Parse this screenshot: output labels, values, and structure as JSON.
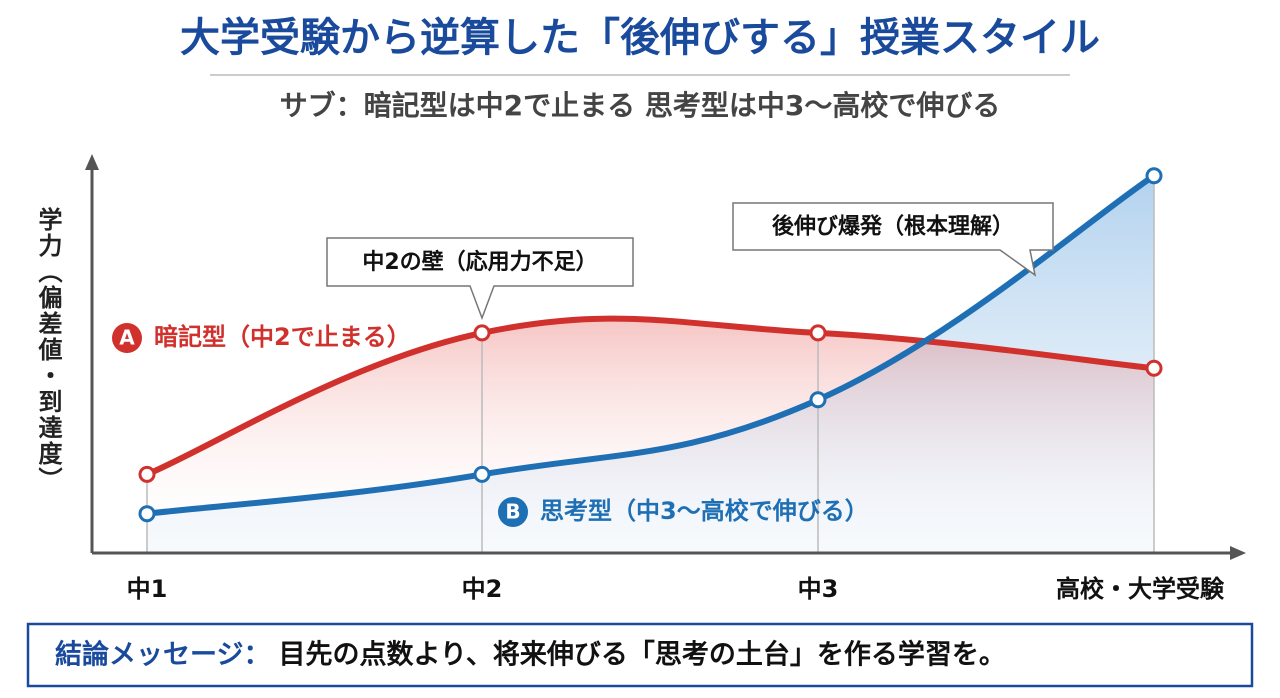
{
  "chart_data": {
    "type": "line",
    "title": "大学受験から逆算した「後伸びする」授業スタイル",
    "subtitle": "サブ：暗記型は中2で止まる 思考型は中3〜高校で伸びる",
    "y_label": "学力（偏差値・到達度）",
    "categories": [
      "中1",
      "中2",
      "中3",
      "高校・大学受験"
    ],
    "ylim": [
      0,
      100
    ],
    "series": [
      {
        "badge": "A",
        "name": "暗記型（中2で止まる）",
        "color": "#d0312d",
        "values": [
          20,
          56,
          56,
          47
        ]
      },
      {
        "badge": "B",
        "name": "思考型（中3〜高校で伸びる）",
        "color": "#1f6fb5",
        "values": [
          10,
          20,
          39,
          96
        ]
      }
    ],
    "annotations": [
      "中2の壁（応用力不足）",
      "後伸び爆発（根本理解）"
    ],
    "conclusion": {
      "label": "結論メッセージ：",
      "text": "目先の点数より、将来伸びる「思考の土台」を作る学習を。"
    }
  }
}
